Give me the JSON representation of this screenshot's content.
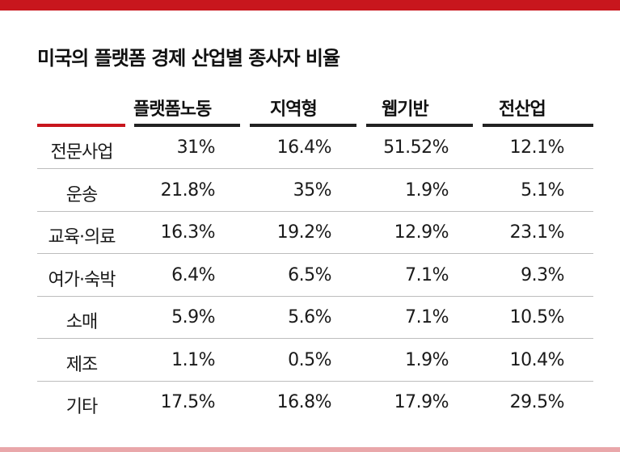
{
  "chart_data": {
    "type": "table",
    "title": "미국의 플랫폼 경제 산업별 종사자 비율",
    "columns": [
      "플랫폼노동",
      "지역형",
      "웹기반",
      "전산업"
    ],
    "rows": [
      {
        "category": "전문사업",
        "values": [
          "31%",
          "16.4%",
          "51.52%",
          "12.1%"
        ]
      },
      {
        "category": "운송",
        "values": [
          "21.8%",
          "35%",
          "1.9%",
          "5.1%"
        ]
      },
      {
        "category": "교육·의료",
        "values": [
          "16.3%",
          "19.2%",
          "12.9%",
          "23.1%"
        ]
      },
      {
        "category": "여가·숙박",
        "values": [
          "6.4%",
          "6.5%",
          "7.1%",
          "9.3%"
        ]
      },
      {
        "category": "소매",
        "values": [
          "5.9%",
          "5.6%",
          "7.1%",
          "10.5%"
        ]
      },
      {
        "category": "제조",
        "values": [
          "1.1%",
          "0.5%",
          "1.9%",
          "10.4%"
        ]
      },
      {
        "category": "기타",
        "values": [
          "17.5%",
          "16.8%",
          "17.9%",
          "29.5%"
        ]
      }
    ]
  },
  "colors": {
    "accent": "#c8161d",
    "header_rule": "#222222",
    "row_line": "#bdbdbd",
    "bottom_bar": "#e9a7aa"
  }
}
